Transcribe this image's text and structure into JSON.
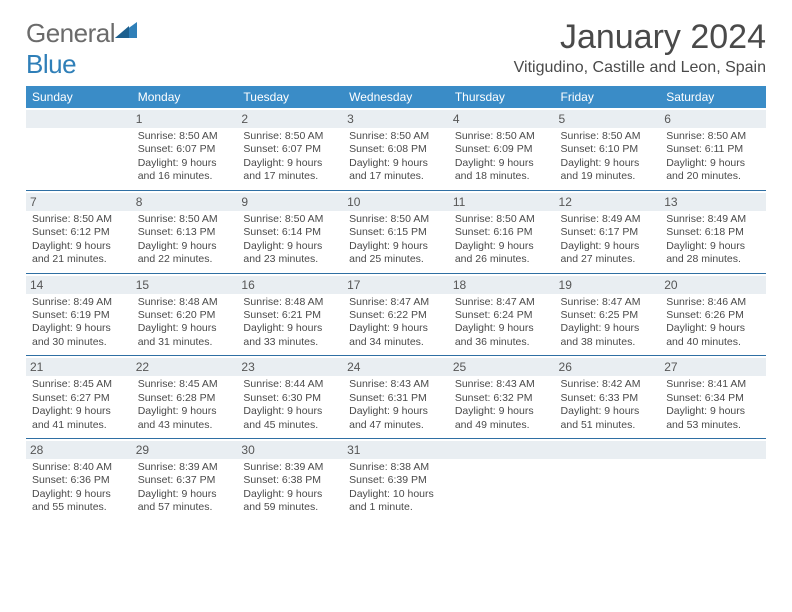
{
  "logo": {
    "word1": "General",
    "word2": "Blue"
  },
  "header": {
    "month_title": "January 2024",
    "location": "Vitigudino, Castille and Leon, Spain"
  },
  "colors": {
    "header_bg": "#3a8cc7",
    "header_text": "#ffffff",
    "row_divider": "#2f6fa3",
    "daynum_bg": "#e9eef2",
    "text": "#4a4a4a",
    "logo_gray": "#6b6b6b",
    "logo_blue": "#2f7fb8",
    "page_bg": "#ffffff"
  },
  "typography": {
    "title_fontsize": 34,
    "location_fontsize": 16,
    "weekday_fontsize": 12,
    "cell_fontsize": 10.5
  },
  "weekdays": [
    "Sunday",
    "Monday",
    "Tuesday",
    "Wednesday",
    "Thursday",
    "Friday",
    "Saturday"
  ],
  "weeks": [
    [
      {
        "n": "",
        "sunrise": "",
        "sunset": "",
        "daylight1": "",
        "daylight2": ""
      },
      {
        "n": "1",
        "sunrise": "Sunrise: 8:50 AM",
        "sunset": "Sunset: 6:07 PM",
        "daylight1": "Daylight: 9 hours",
        "daylight2": "and 16 minutes."
      },
      {
        "n": "2",
        "sunrise": "Sunrise: 8:50 AM",
        "sunset": "Sunset: 6:07 PM",
        "daylight1": "Daylight: 9 hours",
        "daylight2": "and 17 minutes."
      },
      {
        "n": "3",
        "sunrise": "Sunrise: 8:50 AM",
        "sunset": "Sunset: 6:08 PM",
        "daylight1": "Daylight: 9 hours",
        "daylight2": "and 17 minutes."
      },
      {
        "n": "4",
        "sunrise": "Sunrise: 8:50 AM",
        "sunset": "Sunset: 6:09 PM",
        "daylight1": "Daylight: 9 hours",
        "daylight2": "and 18 minutes."
      },
      {
        "n": "5",
        "sunrise": "Sunrise: 8:50 AM",
        "sunset": "Sunset: 6:10 PM",
        "daylight1": "Daylight: 9 hours",
        "daylight2": "and 19 minutes."
      },
      {
        "n": "6",
        "sunrise": "Sunrise: 8:50 AM",
        "sunset": "Sunset: 6:11 PM",
        "daylight1": "Daylight: 9 hours",
        "daylight2": "and 20 minutes."
      }
    ],
    [
      {
        "n": "7",
        "sunrise": "Sunrise: 8:50 AM",
        "sunset": "Sunset: 6:12 PM",
        "daylight1": "Daylight: 9 hours",
        "daylight2": "and 21 minutes."
      },
      {
        "n": "8",
        "sunrise": "Sunrise: 8:50 AM",
        "sunset": "Sunset: 6:13 PM",
        "daylight1": "Daylight: 9 hours",
        "daylight2": "and 22 minutes."
      },
      {
        "n": "9",
        "sunrise": "Sunrise: 8:50 AM",
        "sunset": "Sunset: 6:14 PM",
        "daylight1": "Daylight: 9 hours",
        "daylight2": "and 23 minutes."
      },
      {
        "n": "10",
        "sunrise": "Sunrise: 8:50 AM",
        "sunset": "Sunset: 6:15 PM",
        "daylight1": "Daylight: 9 hours",
        "daylight2": "and 25 minutes."
      },
      {
        "n": "11",
        "sunrise": "Sunrise: 8:50 AM",
        "sunset": "Sunset: 6:16 PM",
        "daylight1": "Daylight: 9 hours",
        "daylight2": "and 26 minutes."
      },
      {
        "n": "12",
        "sunrise": "Sunrise: 8:49 AM",
        "sunset": "Sunset: 6:17 PM",
        "daylight1": "Daylight: 9 hours",
        "daylight2": "and 27 minutes."
      },
      {
        "n": "13",
        "sunrise": "Sunrise: 8:49 AM",
        "sunset": "Sunset: 6:18 PM",
        "daylight1": "Daylight: 9 hours",
        "daylight2": "and 28 minutes."
      }
    ],
    [
      {
        "n": "14",
        "sunrise": "Sunrise: 8:49 AM",
        "sunset": "Sunset: 6:19 PM",
        "daylight1": "Daylight: 9 hours",
        "daylight2": "and 30 minutes."
      },
      {
        "n": "15",
        "sunrise": "Sunrise: 8:48 AM",
        "sunset": "Sunset: 6:20 PM",
        "daylight1": "Daylight: 9 hours",
        "daylight2": "and 31 minutes."
      },
      {
        "n": "16",
        "sunrise": "Sunrise: 8:48 AM",
        "sunset": "Sunset: 6:21 PM",
        "daylight1": "Daylight: 9 hours",
        "daylight2": "and 33 minutes."
      },
      {
        "n": "17",
        "sunrise": "Sunrise: 8:47 AM",
        "sunset": "Sunset: 6:22 PM",
        "daylight1": "Daylight: 9 hours",
        "daylight2": "and 34 minutes."
      },
      {
        "n": "18",
        "sunrise": "Sunrise: 8:47 AM",
        "sunset": "Sunset: 6:24 PM",
        "daylight1": "Daylight: 9 hours",
        "daylight2": "and 36 minutes."
      },
      {
        "n": "19",
        "sunrise": "Sunrise: 8:47 AM",
        "sunset": "Sunset: 6:25 PM",
        "daylight1": "Daylight: 9 hours",
        "daylight2": "and 38 minutes."
      },
      {
        "n": "20",
        "sunrise": "Sunrise: 8:46 AM",
        "sunset": "Sunset: 6:26 PM",
        "daylight1": "Daylight: 9 hours",
        "daylight2": "and 40 minutes."
      }
    ],
    [
      {
        "n": "21",
        "sunrise": "Sunrise: 8:45 AM",
        "sunset": "Sunset: 6:27 PM",
        "daylight1": "Daylight: 9 hours",
        "daylight2": "and 41 minutes."
      },
      {
        "n": "22",
        "sunrise": "Sunrise: 8:45 AM",
        "sunset": "Sunset: 6:28 PM",
        "daylight1": "Daylight: 9 hours",
        "daylight2": "and 43 minutes."
      },
      {
        "n": "23",
        "sunrise": "Sunrise: 8:44 AM",
        "sunset": "Sunset: 6:30 PM",
        "daylight1": "Daylight: 9 hours",
        "daylight2": "and 45 minutes."
      },
      {
        "n": "24",
        "sunrise": "Sunrise: 8:43 AM",
        "sunset": "Sunset: 6:31 PM",
        "daylight1": "Daylight: 9 hours",
        "daylight2": "and 47 minutes."
      },
      {
        "n": "25",
        "sunrise": "Sunrise: 8:43 AM",
        "sunset": "Sunset: 6:32 PM",
        "daylight1": "Daylight: 9 hours",
        "daylight2": "and 49 minutes."
      },
      {
        "n": "26",
        "sunrise": "Sunrise: 8:42 AM",
        "sunset": "Sunset: 6:33 PM",
        "daylight1": "Daylight: 9 hours",
        "daylight2": "and 51 minutes."
      },
      {
        "n": "27",
        "sunrise": "Sunrise: 8:41 AM",
        "sunset": "Sunset: 6:34 PM",
        "daylight1": "Daylight: 9 hours",
        "daylight2": "and 53 minutes."
      }
    ],
    [
      {
        "n": "28",
        "sunrise": "Sunrise: 8:40 AM",
        "sunset": "Sunset: 6:36 PM",
        "daylight1": "Daylight: 9 hours",
        "daylight2": "and 55 minutes."
      },
      {
        "n": "29",
        "sunrise": "Sunrise: 8:39 AM",
        "sunset": "Sunset: 6:37 PM",
        "daylight1": "Daylight: 9 hours",
        "daylight2": "and 57 minutes."
      },
      {
        "n": "30",
        "sunrise": "Sunrise: 8:39 AM",
        "sunset": "Sunset: 6:38 PM",
        "daylight1": "Daylight: 9 hours",
        "daylight2": "and 59 minutes."
      },
      {
        "n": "31",
        "sunrise": "Sunrise: 8:38 AM",
        "sunset": "Sunset: 6:39 PM",
        "daylight1": "Daylight: 10 hours",
        "daylight2": "and 1 minute."
      },
      {
        "n": "",
        "sunrise": "",
        "sunset": "",
        "daylight1": "",
        "daylight2": ""
      },
      {
        "n": "",
        "sunrise": "",
        "sunset": "",
        "daylight1": "",
        "daylight2": ""
      },
      {
        "n": "",
        "sunrise": "",
        "sunset": "",
        "daylight1": "",
        "daylight2": ""
      }
    ]
  ]
}
